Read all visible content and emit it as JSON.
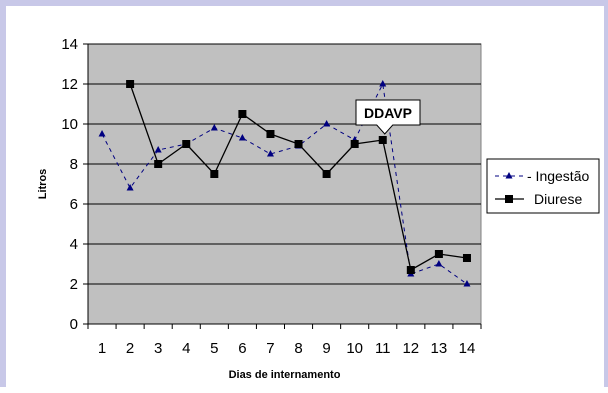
{
  "chart_data": {
    "type": "line",
    "title": "",
    "xlabel": "Dias de internamento",
    "ylabel": "Litros",
    "categories": [
      "1",
      "2",
      "3",
      "4",
      "5",
      "6",
      "7",
      "8",
      "9",
      "10",
      "11",
      "12",
      "13",
      "14"
    ],
    "ylim": [
      0,
      14
    ],
    "yticks": [
      "0",
      "2",
      "4",
      "6",
      "8",
      "10",
      "12",
      "14"
    ],
    "grid": true,
    "legend_position": "right",
    "series": [
      {
        "name": "Ingestão",
        "legend_label": "- Ingestão",
        "style": "dashed",
        "marker": "triangle",
        "color": "#000080",
        "values": [
          9.5,
          6.8,
          8.7,
          9.0,
          9.8,
          9.3,
          8.5,
          8.9,
          10.0,
          9.2,
          12.0,
          2.5,
          3.0,
          2.0
        ]
      },
      {
        "name": "Diurese",
        "legend_label": "Diurese",
        "style": "solid",
        "marker": "square",
        "color": "#000000",
        "values": [
          null,
          12.0,
          8.0,
          9.0,
          7.5,
          10.5,
          9.5,
          9.0,
          7.5,
          9.0,
          9.2,
          2.7,
          3.5,
          3.3
        ]
      }
    ],
    "annotations": [
      {
        "text": "DDAVP",
        "x": "11",
        "y": 9.2
      }
    ],
    "plot_background": "#c0c0c0"
  }
}
